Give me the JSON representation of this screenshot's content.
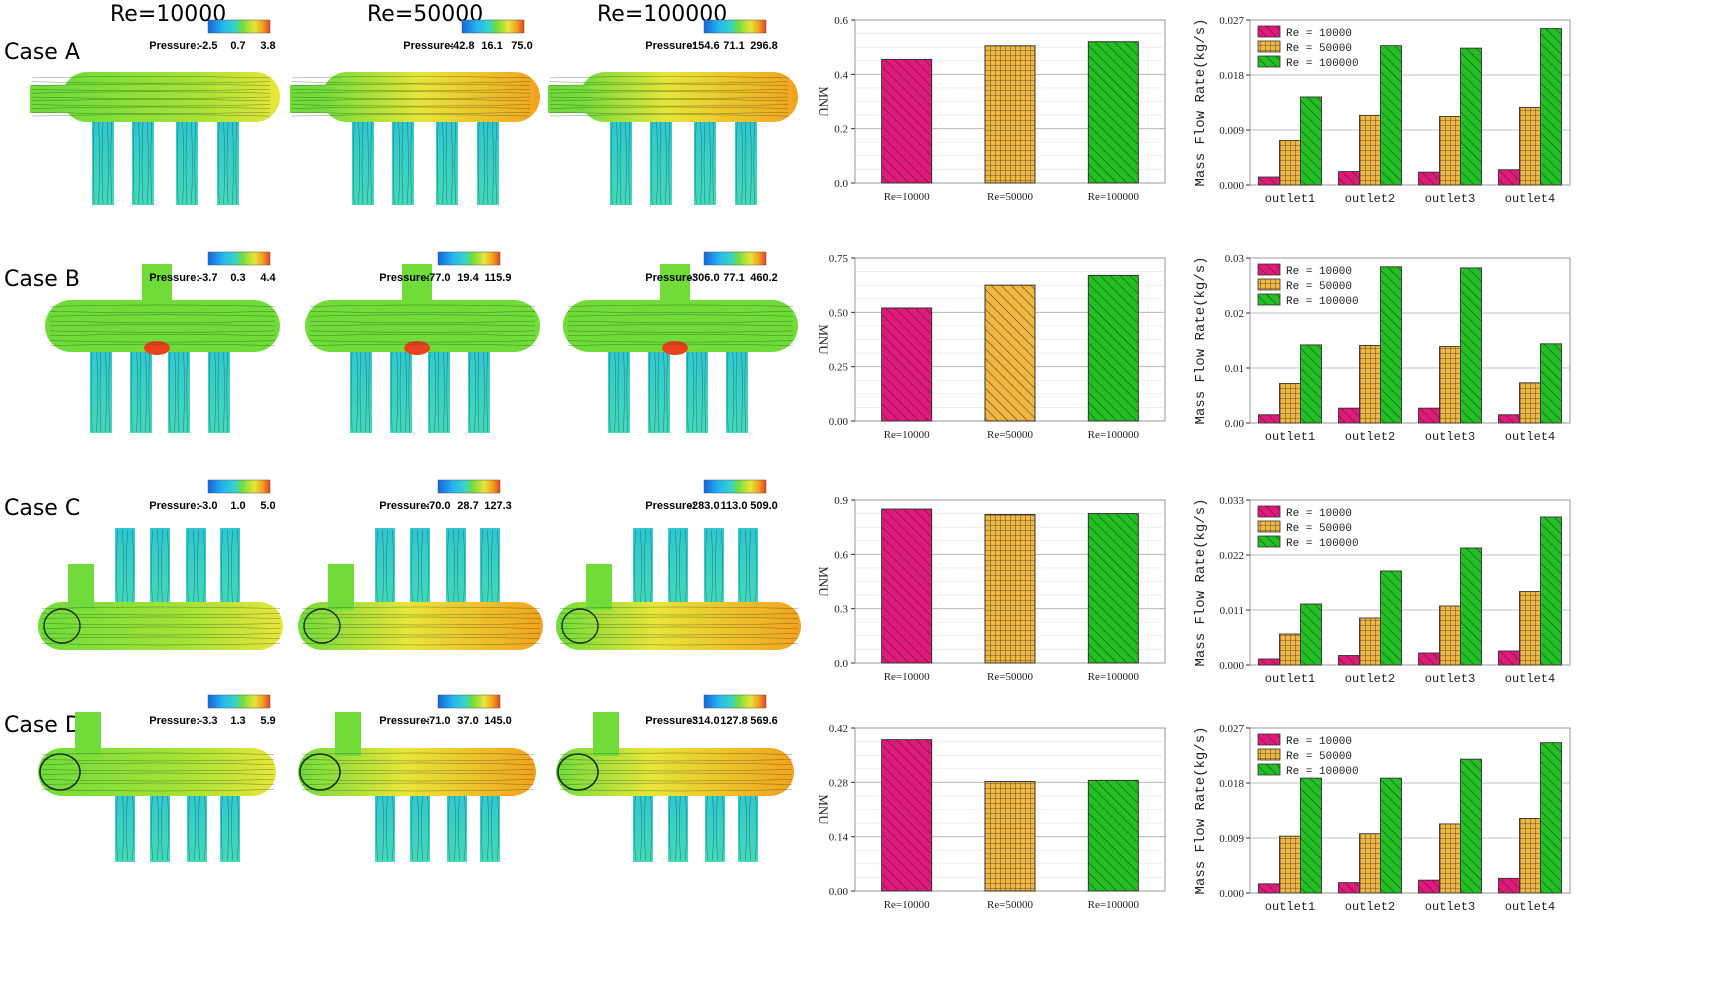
{
  "column_headers": [
    "Re=10000",
    "Re=50000",
    "Re=100000"
  ],
  "cases": [
    {
      "label": "Case A",
      "pressure_scales": [
        {
          "name": "Pressure:",
          "ticks": [
            "-2.5",
            "0.7",
            "3.8"
          ]
        },
        {
          "name": "Pressure:",
          "ticks": [
            "-42.8",
            "16.1",
            "75.0"
          ]
        },
        {
          "name": "Pressure:",
          "ticks": [
            "-154.6",
            "71.1",
            "296.8"
          ]
        }
      ]
    },
    {
      "label": "Case B",
      "pressure_scales": [
        {
          "name": "Pressure:",
          "ticks": [
            "-3.7",
            "0.3",
            "4.4"
          ]
        },
        {
          "name": "Pressure:",
          "ticks": [
            "-77.0",
            "19.4",
            "115.9"
          ]
        },
        {
          "name": "Pressure:",
          "ticks": [
            "-306.0",
            "77.1",
            "460.2"
          ]
        }
      ]
    },
    {
      "label": "Case C",
      "pressure_scales": [
        {
          "name": "Pressure:",
          "ticks": [
            "-3.0",
            "1.0",
            "5.0"
          ]
        },
        {
          "name": "Pressure:",
          "ticks": [
            "-70.0",
            "28.7",
            "127.3"
          ]
        },
        {
          "name": "Pressure:",
          "ticks": [
            "-283.0",
            "113.0",
            "509.0"
          ]
        }
      ]
    },
    {
      "label": "Case D",
      "pressure_scales": [
        {
          "name": "Pressure:",
          "ticks": [
            "-3.3",
            "1.3",
            "5.9"
          ]
        },
        {
          "name": "Pressure:",
          "ticks": [
            "-71.0",
            "37.0",
            "145.0"
          ]
        },
        {
          "name": "Pressure:",
          "ticks": [
            "-314.0",
            "127.8",
            "569.6"
          ]
        }
      ]
    }
  ],
  "colors": {
    "re10000": "#e0197a",
    "re50000": "#f0b640",
    "re100000": "#22c022",
    "fluid_green": "#6fdc3a",
    "fluid_yellow": "#e8e53a",
    "fluid_orange": "#f2a21e",
    "fluid_cyan": "#38d6c8",
    "fluid_blue": "#1565e0",
    "fluid_red": "#e8431d"
  },
  "chart_data": [
    {
      "id": "A-mnu",
      "type": "bar",
      "ylabel": "MNU",
      "ylim": [
        0,
        0.6
      ],
      "yticks": [
        0,
        0.2,
        0.4,
        0.6
      ],
      "ytick_labels": [
        "0.0",
        "0.2",
        "0.4",
        "0.6"
      ],
      "categories": [
        "Re=10000",
        "Re=50000",
        "Re=100000"
      ],
      "values": [
        0.455,
        0.505,
        0.52
      ]
    },
    {
      "id": "A-mfr",
      "type": "bar",
      "ylabel": "Mass Flow Rate(kg/s)",
      "ylim": [
        0,
        0.027
      ],
      "yticks": [
        0,
        0.009,
        0.018,
        0.027
      ],
      "ytick_labels": [
        "0.000",
        "0.009",
        "0.018",
        "0.027"
      ],
      "categories": [
        "outlet1",
        "outlet2",
        "outlet3",
        "outlet4"
      ],
      "legend": [
        "Re = 10000",
        "Re = 50000",
        "Re = 100000"
      ],
      "series": [
        {
          "name": "Re = 10000",
          "values": [
            0.0013,
            0.0022,
            0.0021,
            0.0025
          ]
        },
        {
          "name": "Re = 50000",
          "values": [
            0.0073,
            0.0114,
            0.0112,
            0.0127
          ]
        },
        {
          "name": "Re = 100000",
          "values": [
            0.0144,
            0.0228,
            0.0224,
            0.0256
          ]
        }
      ]
    },
    {
      "id": "B-mnu",
      "type": "bar",
      "ylabel": "MNU",
      "ylim": [
        0,
        0.75
      ],
      "yticks": [
        0,
        0.25,
        0.5,
        0.75
      ],
      "ytick_labels": [
        "0.00",
        "0.25",
        "0.50",
        "0.75"
      ],
      "categories": [
        "Re=10000",
        "Re=50000",
        "Re=100000"
      ],
      "values": [
        0.52,
        0.625,
        0.67
      ]
    },
    {
      "id": "B-mfr",
      "type": "bar",
      "ylabel": "Mass Flow Rate(kg/s)",
      "ylim": [
        0,
        0.03
      ],
      "yticks": [
        0,
        0.01,
        0.02,
        0.03
      ],
      "ytick_labels": [
        "0.00",
        "0.01",
        "0.02",
        "0.03"
      ],
      "categories": [
        "outlet1",
        "outlet2",
        "outlet3",
        "outlet4"
      ],
      "legend": [
        "Re = 10000",
        "Re = 50000",
        "Re = 100000"
      ],
      "series": [
        {
          "name": "Re = 10000",
          "values": [
            0.0015,
            0.0027,
            0.0027,
            0.0015
          ]
        },
        {
          "name": "Re = 50000",
          "values": [
            0.0072,
            0.0141,
            0.0139,
            0.0073
          ]
        },
        {
          "name": "Re = 100000",
          "values": [
            0.0142,
            0.0284,
            0.0282,
            0.0144
          ]
        }
      ]
    },
    {
      "id": "C-mnu",
      "type": "bar",
      "ylabel": "MNU",
      "ylim": [
        0,
        0.9
      ],
      "yticks": [
        0,
        0.3,
        0.6,
        0.9
      ],
      "ytick_labels": [
        "0.0",
        "0.3",
        "0.6",
        "0.9"
      ],
      "categories": [
        "Re=10000",
        "Re=50000",
        "Re=100000"
      ],
      "values": [
        0.85,
        0.82,
        0.825
      ]
    },
    {
      "id": "C-mfr",
      "type": "bar",
      "ylabel": "Mass Flow Rate(kg/s)",
      "ylim": [
        0,
        0.033
      ],
      "yticks": [
        0,
        0.011,
        0.022,
        0.033
      ],
      "ytick_labels": [
        "0.000",
        "0.011",
        "0.022",
        "0.033"
      ],
      "categories": [
        "outlet1",
        "outlet2",
        "outlet3",
        "outlet4"
      ],
      "legend": [
        "Re = 10000",
        "Re = 50000",
        "Re = 100000"
      ],
      "series": [
        {
          "name": "Re = 10000",
          "values": [
            0.0012,
            0.0019,
            0.0024,
            0.0028
          ]
        },
        {
          "name": "Re = 50000",
          "values": [
            0.0062,
            0.0094,
            0.0118,
            0.0147
          ]
        },
        {
          "name": "Re = 100000",
          "values": [
            0.0122,
            0.0188,
            0.0234,
            0.0296
          ]
        }
      ]
    },
    {
      "id": "D-mnu",
      "type": "bar",
      "ylabel": "MNU",
      "ylim": [
        0,
        0.42
      ],
      "yticks": [
        0,
        0.14,
        0.28,
        0.42
      ],
      "ytick_labels": [
        "0.00",
        "0.14",
        "0.28",
        "0.42"
      ],
      "categories": [
        "Re=10000",
        "Re=50000",
        "Re=100000"
      ],
      "values": [
        0.39,
        0.282,
        0.285
      ]
    },
    {
      "id": "D-mfr",
      "type": "bar",
      "ylabel": "Mass Flow Rate(kg/s)",
      "ylim": [
        0,
        0.027
      ],
      "yticks": [
        0,
        0.009,
        0.018,
        0.027
      ],
      "ytick_labels": [
        "0.000",
        "0.009",
        "0.018",
        "0.027"
      ],
      "categories": [
        "outlet1",
        "outlet2",
        "outlet3",
        "outlet4"
      ],
      "legend": [
        "Re = 10000",
        "Re = 50000",
        "Re = 100000"
      ],
      "series": [
        {
          "name": "Re = 10000",
          "values": [
            0.0015,
            0.0017,
            0.0021,
            0.0024
          ]
        },
        {
          "name": "Re = 50000",
          "values": [
            0.0093,
            0.0097,
            0.0113,
            0.0122
          ]
        },
        {
          "name": "Re = 100000",
          "values": [
            0.0188,
            0.0188,
            0.0219,
            0.0246
          ]
        }
      ]
    }
  ]
}
